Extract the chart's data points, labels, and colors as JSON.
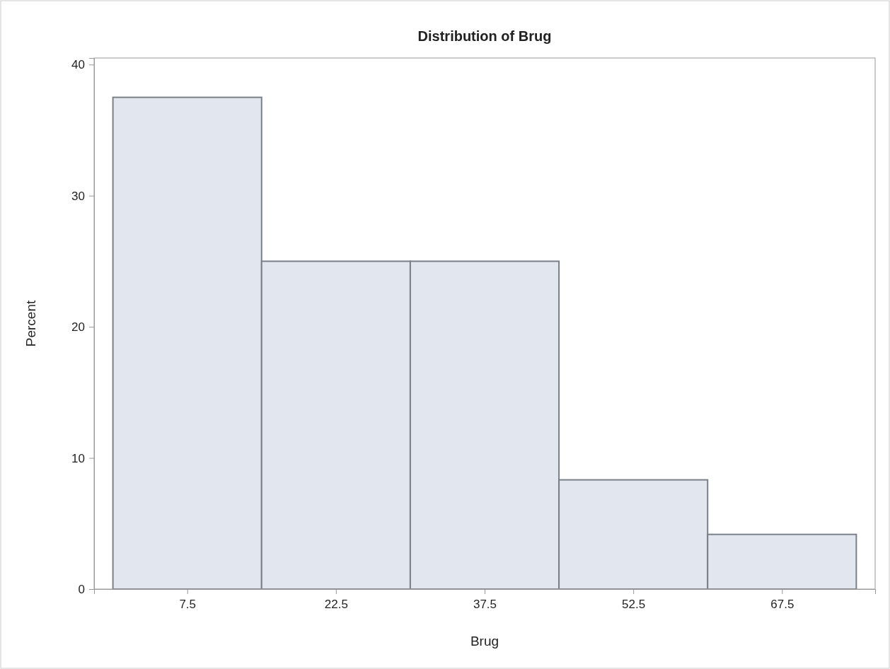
{
  "chart_data": {
    "type": "histogram",
    "title": "Distribution of Brug",
    "xlabel": "Brug",
    "ylabel": "Percent",
    "bins": [
      0,
      15,
      30,
      45,
      60,
      75
    ],
    "values": [
      37.5,
      25,
      25,
      8.33,
      4.17
    ],
    "color": "#e1e6ef",
    "xlim": [
      -1.9,
      76.9
    ],
    "ylim": [
      0,
      40.5
    ],
    "xticks": [
      7.5,
      22.5,
      37.5,
      52.5,
      67.5
    ],
    "yticks": [
      0,
      10,
      20,
      30,
      40
    ],
    "grid": false
  }
}
